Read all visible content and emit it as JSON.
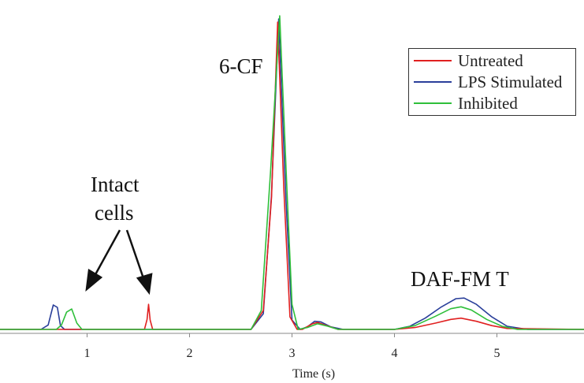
{
  "chart_data": {
    "type": "line",
    "xlabel": "Time (s)",
    "ylabel": "",
    "xlim": [
      0.15,
      5.85
    ],
    "ylim": [
      0,
      1.0
    ],
    "xticks": [
      1,
      2,
      3,
      4,
      5
    ],
    "xtick_labels": [
      "1",
      "2",
      "3",
      "4",
      "5"
    ],
    "grid": false,
    "legend_position": "top-right",
    "series": [
      {
        "name": "Untreated",
        "color": "#e02020",
        "points": [
          [
            0.15,
            0.0
          ],
          [
            1.2,
            0.0
          ],
          [
            1.56,
            0.0
          ],
          [
            1.585,
            0.032
          ],
          [
            1.6,
            0.08
          ],
          [
            1.615,
            0.03
          ],
          [
            1.64,
            0.0
          ],
          [
            2.6,
            0.0
          ],
          [
            2.72,
            0.06
          ],
          [
            2.8,
            0.42
          ],
          [
            2.86,
            0.98
          ],
          [
            2.92,
            0.45
          ],
          [
            2.98,
            0.04
          ],
          [
            3.05,
            0.0
          ],
          [
            3.1,
            0.0
          ],
          [
            3.2,
            0.018
          ],
          [
            3.25,
            0.022
          ],
          [
            3.32,
            0.014
          ],
          [
            3.45,
            0.0
          ],
          [
            4.0,
            0.0
          ],
          [
            4.2,
            0.006
          ],
          [
            4.4,
            0.02
          ],
          [
            4.55,
            0.032
          ],
          [
            4.65,
            0.036
          ],
          [
            4.8,
            0.026
          ],
          [
            4.95,
            0.012
          ],
          [
            5.1,
            0.003
          ],
          [
            5.85,
            0.0
          ]
        ]
      },
      {
        "name": "LPS Stimulated",
        "color": "#2a3f9a",
        "points": [
          [
            0.15,
            0.0
          ],
          [
            0.55,
            0.0
          ],
          [
            0.62,
            0.014
          ],
          [
            0.67,
            0.078
          ],
          [
            0.71,
            0.07
          ],
          [
            0.74,
            0.012
          ],
          [
            0.78,
            0.0
          ],
          [
            2.6,
            0.0
          ],
          [
            2.72,
            0.05
          ],
          [
            2.8,
            0.43
          ],
          [
            2.87,
            0.99
          ],
          [
            2.94,
            0.42
          ],
          [
            3.0,
            0.03
          ],
          [
            3.08,
            0.0
          ],
          [
            3.15,
            0.008
          ],
          [
            3.22,
            0.026
          ],
          [
            3.28,
            0.024
          ],
          [
            3.38,
            0.008
          ],
          [
            3.5,
            0.0
          ],
          [
            4.0,
            0.0
          ],
          [
            4.15,
            0.01
          ],
          [
            4.3,
            0.036
          ],
          [
            4.45,
            0.07
          ],
          [
            4.6,
            0.098
          ],
          [
            4.68,
            0.1
          ],
          [
            4.8,
            0.08
          ],
          [
            4.95,
            0.04
          ],
          [
            5.1,
            0.01
          ],
          [
            5.3,
            0.0
          ],
          [
            5.85,
            0.0
          ]
        ]
      },
      {
        "name": "Inhibited",
        "color": "#2fbf3a",
        "points": [
          [
            0.15,
            0.0
          ],
          [
            0.7,
            0.0
          ],
          [
            0.75,
            0.014
          ],
          [
            0.8,
            0.055
          ],
          [
            0.85,
            0.065
          ],
          [
            0.9,
            0.02
          ],
          [
            0.95,
            0.0
          ],
          [
            2.6,
            0.0
          ],
          [
            2.7,
            0.06
          ],
          [
            2.79,
            0.5
          ],
          [
            2.88,
            1.0
          ],
          [
            2.95,
            0.45
          ],
          [
            3.0,
            0.08
          ],
          [
            3.06,
            0.0
          ],
          [
            3.15,
            0.006
          ],
          [
            3.25,
            0.018
          ],
          [
            3.35,
            0.01
          ],
          [
            3.45,
            0.0
          ],
          [
            4.0,
            0.0
          ],
          [
            4.2,
            0.012
          ],
          [
            4.4,
            0.042
          ],
          [
            4.55,
            0.066
          ],
          [
            4.65,
            0.072
          ],
          [
            4.75,
            0.062
          ],
          [
            4.9,
            0.032
          ],
          [
            5.05,
            0.01
          ],
          [
            5.2,
            0.0
          ],
          [
            5.85,
            0.0
          ]
        ]
      }
    ],
    "annotations": [
      {
        "text": "6-CF"
      },
      {
        "text": "Intact"
      },
      {
        "text": "cells"
      },
      {
        "text": "DAF-FM T"
      }
    ]
  }
}
